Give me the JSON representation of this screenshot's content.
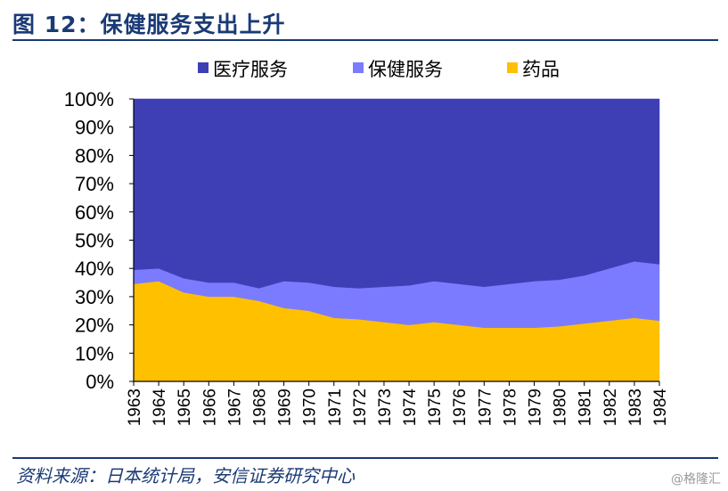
{
  "header": {
    "title": "图 12：保健服务支出上升"
  },
  "footer": {
    "source": "资料来源：日本统计局，安信证券研究中心",
    "watermark": "@格隆汇"
  },
  "colors": {
    "title": "#1a3a75",
    "medical": "#3f3fb5",
    "health": "#7b7bff",
    "drugs": "#ffc000"
  },
  "chart_data": {
    "type": "area",
    "stacked": true,
    "percent": true,
    "title": "",
    "xlabel": "",
    "ylabel": "",
    "ylim": [
      0,
      100
    ],
    "y_ticks": [
      "0%",
      "10%",
      "20%",
      "30%",
      "40%",
      "50%",
      "60%",
      "70%",
      "80%",
      "90%",
      "100%"
    ],
    "legend_position": "top",
    "grid": false,
    "categories": [
      "1963",
      "1964",
      "1965",
      "1966",
      "1967",
      "1968",
      "1969",
      "1970",
      "1971",
      "1972",
      "1973",
      "1974",
      "1975",
      "1976",
      "1977",
      "1978",
      "1979",
      "1980",
      "1981",
      "1982",
      "1983",
      "1984"
    ],
    "series": [
      {
        "name": "药品",
        "values": [
          34.5,
          35.5,
          31.5,
          30.0,
          30.0,
          28.5,
          26.0,
          25.0,
          22.5,
          22.0,
          21.0,
          20.0,
          21.0,
          20.0,
          19.0,
          19.0,
          19.0,
          19.5,
          20.5,
          21.5,
          22.5,
          21.5
        ]
      },
      {
        "name": "保健服务",
        "values": [
          5.0,
          4.5,
          5.0,
          5.0,
          5.0,
          4.5,
          9.5,
          10.0,
          11.0,
          11.0,
          12.5,
          14.0,
          14.5,
          14.5,
          14.5,
          15.5,
          16.5,
          16.5,
          17.0,
          18.5,
          20.0,
          20.0
        ]
      },
      {
        "name": "医疗服务",
        "values": [
          60.5,
          60.0,
          63.5,
          65.0,
          65.0,
          67.0,
          64.5,
          65.0,
          66.5,
          67.0,
          66.5,
          66.0,
          64.5,
          65.5,
          66.5,
          65.5,
          64.5,
          64.0,
          62.5,
          60.0,
          57.5,
          58.5
        ]
      }
    ],
    "legend": [
      "医疗服务",
      "保健服务",
      "药品"
    ]
  }
}
